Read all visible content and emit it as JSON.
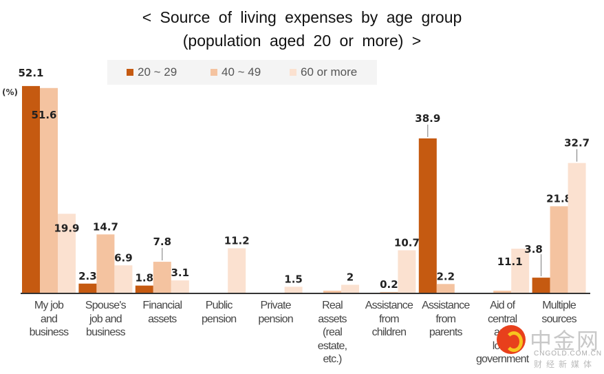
{
  "chart_data": {
    "type": "bar",
    "title": "< Source of living expenses by age group",
    "subtitle": "(population aged 20 or more) >",
    "unit_label": "(%)",
    "xlabel": "",
    "ylabel": "(%)",
    "ylim": [
      0,
      55
    ],
    "grid": false,
    "legend_position": "top-center",
    "categories": [
      "My job and business",
      "Spouse's job and business",
      "Financial assets",
      "Public pension",
      "Private pension",
      "Real assets (real estate, etc.)",
      "Assistance from children",
      "Assistance from parents",
      "Aid of central and local government",
      "Multiple sources"
    ],
    "category_lines": [
      [
        "My job",
        "and",
        "business"
      ],
      [
        "Spouse's",
        "job and",
        "business"
      ],
      [
        "Financial",
        "assets"
      ],
      [
        "Public",
        "pension"
      ],
      [
        "Private",
        "pension"
      ],
      [
        "Real",
        "assets",
        "(real",
        "estate,",
        "etc.)"
      ],
      [
        "Assistance",
        "from",
        "children"
      ],
      [
        "Assistance",
        "from",
        "parents"
      ],
      [
        "Aid of",
        "central",
        "and",
        "local",
        "government"
      ],
      [
        "Multiple",
        "sources"
      ]
    ],
    "series": [
      {
        "name": "20 ~ 29",
        "color": "#c55a11",
        "values": [
          52.1,
          2.3,
          1.8,
          0,
          0,
          0,
          0,
          38.9,
          0,
          3.8
        ],
        "labels": [
          "52.1",
          "2.3",
          "1.8",
          "",
          "",
          "",
          "",
          "38.9",
          "",
          "3.8"
        ]
      },
      {
        "name": "40 ~ 49",
        "color": "#f4c3a0",
        "values": [
          51.6,
          14.7,
          7.8,
          0,
          0,
          0.5,
          0.2,
          2.2,
          0.5,
          21.8
        ],
        "labels": [
          "51.6",
          "14.7",
          "7.8",
          "",
          "",
          "",
          "0.2",
          "2.2",
          "",
          "21.8"
        ]
      },
      {
        "name": "60 or more",
        "color": "#fbe1d0",
        "values": [
          19.9,
          6.9,
          3.1,
          11.2,
          1.5,
          2,
          10.7,
          0,
          11.1,
          32.7
        ],
        "labels": [
          "19.9",
          "6.9",
          "3.1",
          "11.2",
          "1.5",
          "2",
          "10.7",
          "",
          "11.1",
          "32.7"
        ]
      }
    ]
  },
  "watermark": {
    "name_cn": "中金网",
    "domain": "CNGOLD.COM.CN",
    "tagline_cn": "财经新媒体"
  }
}
